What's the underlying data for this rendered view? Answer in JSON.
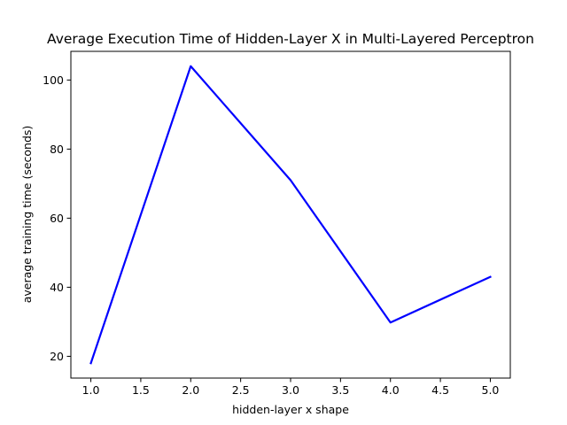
{
  "chart_data": {
    "type": "line",
    "title": "Average Execution Time of Hidden-Layer X in Multi-Layered Perceptron",
    "xlabel": "hidden-layer x shape",
    "ylabel": "average training time (seconds)",
    "x": [
      1.0,
      2.0,
      3.0,
      4.0,
      5.0
    ],
    "series": [
      {
        "values": [
          18.0,
          104.0,
          71.0,
          29.8,
          43.0
        ],
        "color": "#0000ff"
      }
    ],
    "xlim": [
      0.8,
      5.2
    ],
    "ylim": [
      13.7,
      108.3
    ],
    "xticks": [
      1.0,
      1.5,
      2.0,
      2.5,
      3.0,
      3.5,
      4.0,
      4.5,
      5.0
    ],
    "xtick_labels": [
      "1.0",
      "1.5",
      "2.0",
      "2.5",
      "3.0",
      "3.5",
      "4.0",
      "4.5",
      "5.0"
    ],
    "yticks": [
      20,
      40,
      60,
      80,
      100
    ],
    "ytick_labels": [
      "20",
      "40",
      "60",
      "80",
      "100"
    ],
    "grid": false,
    "legend": "none"
  }
}
